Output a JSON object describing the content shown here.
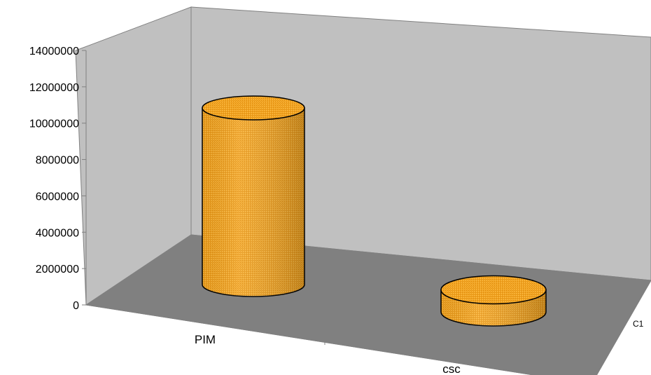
{
  "chart_data": {
    "type": "bar",
    "style": "3d-cylinder",
    "categories": [
      "PIM",
      "csc"
    ],
    "series": [
      {
        "name": "C1",
        "values": [
          12000000,
          1500000
        ]
      }
    ],
    "ylim": [
      0,
      14000000
    ],
    "yticks": [
      "0",
      "2000000",
      "4000000",
      "6000000",
      "8000000",
      "10000000",
      "12000000",
      "14000000"
    ],
    "grid": false,
    "legend": "none",
    "colors": {
      "bar_fill": "#f5a623",
      "bar_top": "#f7b23a",
      "back_wall": "#c0c0c0",
      "floor": "#808080",
      "axis": "#808080"
    }
  }
}
